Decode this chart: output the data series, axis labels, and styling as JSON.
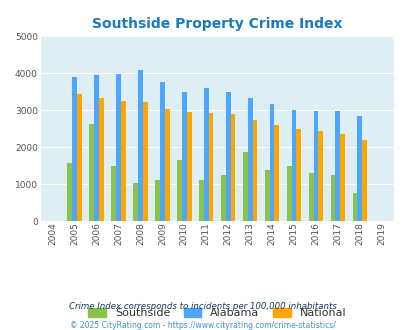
{
  "title": "Southside Property Crime Index",
  "years": [
    2004,
    2005,
    2006,
    2007,
    2008,
    2009,
    2010,
    2011,
    2012,
    2013,
    2014,
    2015,
    2016,
    2017,
    2018,
    2019
  ],
  "southside": [
    0,
    1560,
    2630,
    1500,
    1040,
    1110,
    1650,
    1110,
    1260,
    1860,
    1390,
    1500,
    1310,
    1260,
    760,
    0
  ],
  "alabama": [
    0,
    3910,
    3940,
    3970,
    4080,
    3770,
    3500,
    3610,
    3500,
    3340,
    3180,
    3010,
    2990,
    2990,
    2840,
    0
  ],
  "national": [
    0,
    3430,
    3340,
    3240,
    3210,
    3030,
    2950,
    2920,
    2890,
    2730,
    2600,
    2490,
    2450,
    2360,
    2200,
    0
  ],
  "southside_color": "#8bc34a",
  "alabama_color": "#4da6ff",
  "national_color": "#ffa500",
  "bg_color": "#deeef5",
  "ylim": [
    0,
    5000
  ],
  "yticks": [
    0,
    1000,
    2000,
    3000,
    4000,
    5000
  ],
  "footnote1": "Crime Index corresponds to incidents per 100,000 inhabitants",
  "footnote2": "© 2025 CityRating.com - https://www.cityrating.com/crime-statistics/",
  "title_color": "#1a7abf",
  "footnote1_color": "#1a3a5c",
  "footnote2_color": "#4a90c4"
}
